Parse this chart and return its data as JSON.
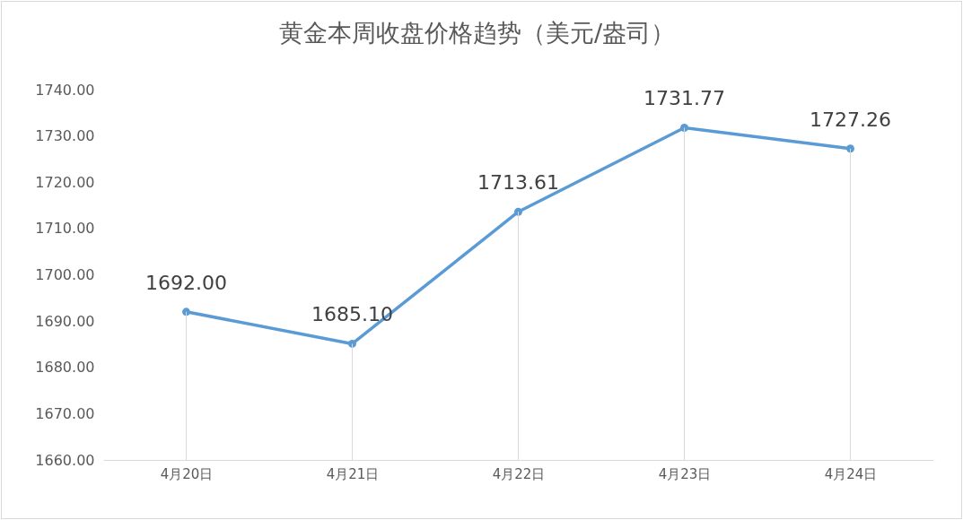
{
  "chart_data": {
    "type": "line",
    "title": "黄金本周收盘价格趋势（美元/盎司）",
    "categories": [
      "4月20日",
      "4月21日",
      "4月22日",
      "4月23日",
      "4月24日"
    ],
    "series": [
      {
        "color": "#5b9bd5",
        "values": [
          1692.0,
          1685.1,
          1713.61,
          1731.77,
          1727.26
        ],
        "value_labels": [
          "1692.00",
          "1685.10",
          "1713.61",
          "1731.77",
          "1727.26"
        ]
      }
    ],
    "ylim": [
      1660,
      1740
    ],
    "yticks": [
      {
        "value": 1660,
        "label": "1660.00"
      },
      {
        "value": 1670,
        "label": "1670.00"
      },
      {
        "value": 1680,
        "label": "1680.00"
      },
      {
        "value": 1690,
        "label": "1690.00"
      },
      {
        "value": 1700,
        "label": "1700.00"
      },
      {
        "value": 1710,
        "label": "1710.00"
      },
      {
        "value": 1720,
        "label": "1720.00"
      },
      {
        "value": 1730,
        "label": "1730.00"
      },
      {
        "value": 1740,
        "label": "1740.00"
      }
    ],
    "marker": "circle",
    "line_style": "solid"
  }
}
